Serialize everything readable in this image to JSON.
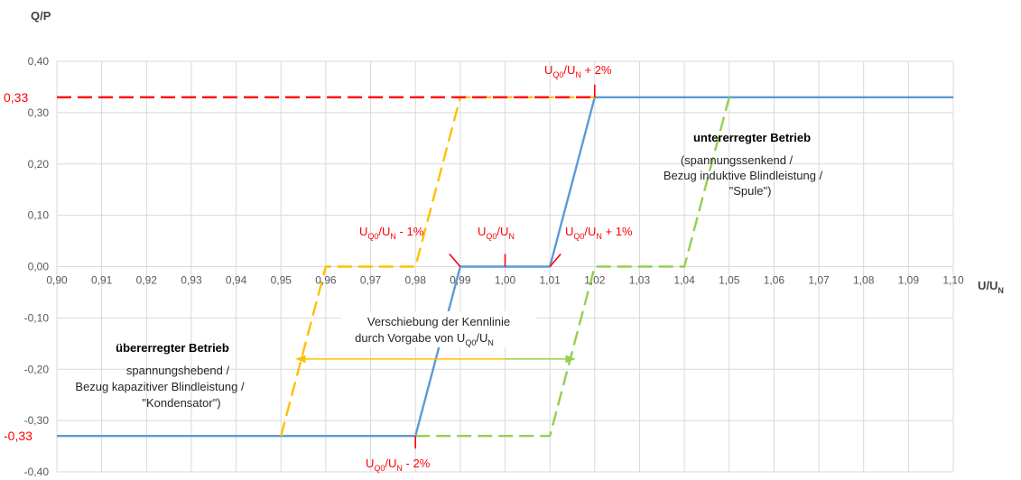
{
  "chart_data": {
    "type": "line",
    "ylabel": "Q/P",
    "xlabel_main": "U/U",
    "xlabel_sub": "N",
    "xlim": [
      0.9,
      1.1
    ],
    "ylim": [
      -0.4,
      0.4
    ],
    "grid": true,
    "x_ticks": [
      "0,90",
      "0,91",
      "0,92",
      "0,93",
      "0,94",
      "0,95",
      "0,96",
      "0,97",
      "0,98",
      "0,99",
      "1,00",
      "1,01",
      "1,02",
      "1,03",
      "1,04",
      "1,05",
      "1,06",
      "1,07",
      "1,08",
      "1,09",
      "1,10"
    ],
    "y_ticks": [
      {
        "v": 0.4,
        "label": "0,40"
      },
      {
        "v": 0.3,
        "label": "0,30"
      },
      {
        "v": 0.2,
        "label": "0,20"
      },
      {
        "v": 0.1,
        "label": "0,10"
      },
      {
        "v": 0.0,
        "label": "0,00"
      },
      {
        "v": -0.1,
        "label": "-0,10"
      },
      {
        "v": -0.2,
        "label": "-0,20"
      },
      {
        "v": -0.3,
        "label": "-0,30"
      },
      {
        "v": -0.4,
        "label": "-0,40"
      }
    ],
    "y_marked": [
      {
        "v": 0.33,
        "label": "0,33"
      },
      {
        "v": -0.33,
        "label": "-0,33"
      }
    ],
    "series": [
      {
        "color": "#5b9bd5",
        "dash": false,
        "x": [
          0.9,
          0.98,
          0.99,
          1.01,
          1.02,
          1.1
        ],
        "y": [
          -0.33,
          -0.33,
          0.0,
          0.0,
          0.33,
          0.33
        ]
      },
      {
        "color": "#ffc000",
        "dash": true,
        "x": [
          0.95,
          0.96,
          0.98,
          0.99,
          1.02
        ],
        "y": [
          -0.33,
          0.0,
          0.0,
          0.33,
          0.33
        ]
      },
      {
        "color": "#92d050",
        "dash": true,
        "x": [
          0.98,
          1.01,
          1.02,
          1.04,
          1.05
        ],
        "y": [
          -0.33,
          -0.33,
          0.0,
          0.0,
          0.33
        ]
      },
      {
        "color": "#ff0000",
        "dash": true,
        "x": [
          0.9,
          1.02
        ],
        "y": [
          0.33,
          0.33
        ]
      }
    ],
    "shift_arrows": [
      {
        "color": "#ffc000",
        "x": [
          0.9535,
          1.0
        ],
        "y": -0.18
      },
      {
        "color": "#92d050",
        "x": [
          1.0,
          1.0155
        ],
        "y": -0.18
      }
    ],
    "red_markers": [
      {
        "x": 1.02,
        "y": 0.33,
        "dir": "up"
      },
      {
        "x": 0.98,
        "y": -0.33,
        "dir": "down"
      },
      {
        "x": 1.0,
        "y": 0.0,
        "dir": "up"
      },
      {
        "x": 0.99,
        "y": 0.0,
        "dir": "up-left"
      },
      {
        "x": 1.01,
        "y": 0.0,
        "dir": "up-right"
      }
    ],
    "accent_color": "#ff0000",
    "annotations": {
      "p_plus2": {
        "base": "U",
        "s1": "Q0",
        "mid": "/U",
        "s2": "N",
        "tail": " + 2%"
      },
      "p_minus2": {
        "base": "U",
        "s1": "Q0",
        "mid": "/U",
        "s2": "N",
        "tail": " - 2%"
      },
      "p_minus1": {
        "base": "U",
        "s1": "Q0",
        "mid": "/U",
        "s2": "N",
        "tail": " - 1%"
      },
      "p_zero": {
        "base": "U",
        "s1": "Q0",
        "mid": "/U",
        "s2": "N",
        "tail": ""
      },
      "p_plus1": {
        "base": "U",
        "s1": "Q0",
        "mid": "/U",
        "s2": "N",
        "tail": " + 1%"
      },
      "under_title": "untererregter Betrieb",
      "under_l1": "(spannungssenkend /",
      "under_l2": "Bezug induktive Blindleistung /",
      "under_l3": "\"Spule\")",
      "over_title": "übererregter Betrieb",
      "over_l1": "spannungshebend /",
      "over_l2": "Bezug kapazitiver Blindleistung /",
      "over_l3": "\"Kondensator\")",
      "shift_l1": "Verschiebung der Kennlinie",
      "shift_l2_pre": "durch Vorgabe von U",
      "shift_l2_s1": "Q0",
      "shift_l2_mid": "/U",
      "shift_l2_s2": "N"
    }
  }
}
